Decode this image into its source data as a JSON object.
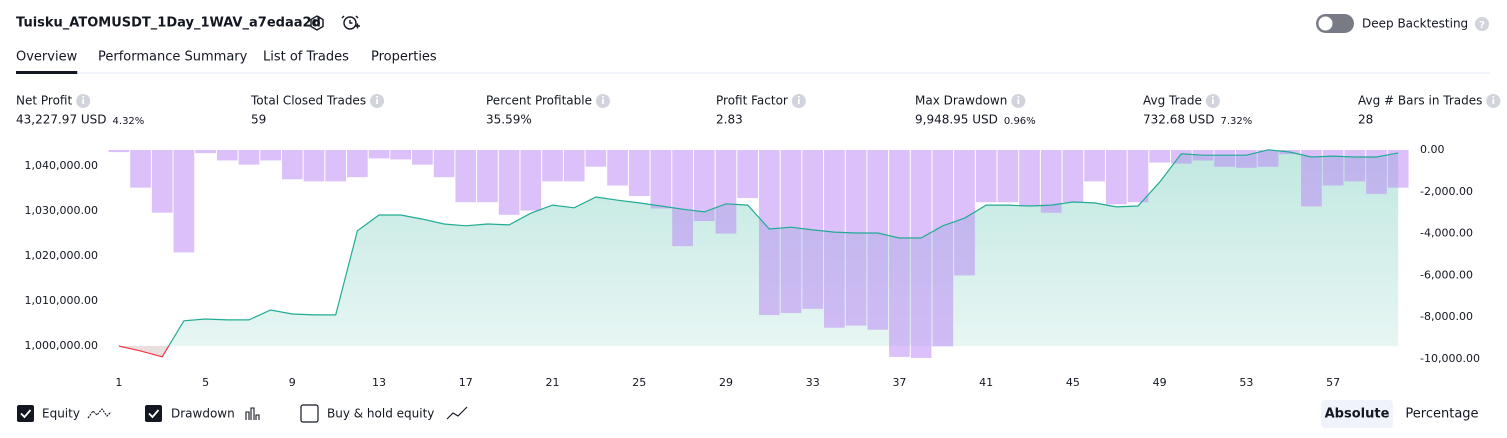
{
  "header": {
    "title": "Tuisku_ATOMUSDT_1Day_1WAV_a7edaa2d",
    "deep_backtesting": "Deep Backtesting"
  },
  "tabs": {
    "items": [
      "Overview",
      "Performance Summary",
      "List of Trades",
      "Properties"
    ],
    "active": 0
  },
  "metrics": [
    {
      "label": "Net Profit",
      "value": "43,227.97 USD",
      "percent": "4.32%",
      "color": "#089981"
    },
    {
      "label": "Total Closed Trades",
      "value": "59",
      "color": "#131722"
    },
    {
      "label": "Percent Profitable",
      "value": "35.59%",
      "color": "#089981"
    },
    {
      "label": "Profit Factor",
      "value": "2.83",
      "color": "#089981"
    },
    {
      "label": "Max Drawdown",
      "value": "9,948.95 USD",
      "percent": "0.96%",
      "color": "#f23645"
    },
    {
      "label": "Avg Trade",
      "value": "732.68 USD",
      "percent": "7.32%",
      "color": "#089981"
    },
    {
      "label": "Avg # Bars in Trades",
      "value": "28",
      "color": "#131722"
    }
  ],
  "chart_data": {
    "type": "equity_drawdown",
    "x": [
      1,
      2,
      3,
      4,
      5,
      6,
      7,
      8,
      9,
      10,
      11,
      12,
      13,
      14,
      15,
      16,
      17,
      18,
      19,
      20,
      21,
      22,
      23,
      24,
      25,
      26,
      27,
      28,
      29,
      30,
      31,
      32,
      33,
      34,
      35,
      36,
      37,
      38,
      39,
      40,
      41,
      42,
      43,
      44,
      45,
      46,
      47,
      48,
      49,
      50,
      51,
      52,
      53,
      54,
      55,
      56,
      57,
      58,
      59,
      60
    ],
    "xlim": [
      0.5,
      60.5
    ],
    "xticks": [
      1,
      5,
      9,
      13,
      17,
      21,
      25,
      29,
      33,
      37,
      41,
      45,
      49,
      53,
      57
    ],
    "series": [
      {
        "name": "Equity",
        "color": "#22ab94",
        "below_color": "#f23645",
        "checked": true,
        "axis": "y",
        "values": [
          1000000,
          998900,
          997600,
          1005600,
          1006000,
          1005800,
          1005800,
          1008000,
          1007100,
          1006900,
          1006900,
          1025600,
          1029100,
          1029100,
          1028200,
          1027100,
          1026700,
          1027100,
          1026900,
          1029500,
          1031300,
          1030700,
          1033100,
          1032400,
          1031800,
          1031100,
          1030400,
          1029800,
          1031600,
          1031300,
          1026000,
          1026400,
          1025800,
          1025300,
          1025100,
          1025100,
          1024000,
          1024000,
          1026700,
          1028400,
          1031300,
          1031300,
          1031100,
          1031300,
          1032000,
          1031800,
          1030900,
          1031100,
          1036400,
          1042700,
          1042400,
          1042400,
          1042400,
          1043600,
          1043100,
          1042000,
          1042200,
          1042000,
          1042000,
          1042900
        ]
      },
      {
        "name": "Drawdown",
        "color": "rgba(186,130,245,0.5)",
        "checked": true,
        "axis": "y2",
        "values": [
          -100,
          -1800,
          -3000,
          -4900,
          -150,
          -500,
          -700,
          -500,
          -1400,
          -1500,
          -1500,
          -1300,
          -400,
          -450,
          -700,
          -1300,
          -2500,
          -2500,
          -3100,
          -2900,
          -1500,
          -1500,
          -800,
          -1700,
          -2200,
          -2800,
          -4600,
          -3400,
          -4000,
          -2300,
          -7900,
          -7800,
          -7600,
          -8500,
          -8400,
          -8600,
          -9900,
          -9950,
          -9400,
          -6000,
          -2500,
          -2500,
          -2700,
          -3000,
          -2500,
          -1500,
          -2600,
          -2500,
          -600,
          -650,
          -500,
          -800,
          -850,
          -800,
          -200,
          -2700,
          -1700,
          -1500,
          -2100,
          -1800
        ]
      }
    ],
    "baseline": 1000000,
    "ylim": [
      997100,
      1043550
    ],
    "yticks": [
      {
        "value": 1000000,
        "label": "1,000,000.00"
      },
      {
        "value": 1010000,
        "label": "1,010,000.00"
      },
      {
        "value": 1020000,
        "label": "1,020,000.00"
      },
      {
        "value": 1030000,
        "label": "1,030,000.00"
      },
      {
        "value": 1040000,
        "label": "1,040,000.00"
      }
    ],
    "y2lim": [
      -10000,
      0
    ],
    "y2ticks": [
      {
        "value": 0,
        "label": "0.00"
      },
      {
        "value": -2000,
        "label": "-2,000.00"
      },
      {
        "value": -4000,
        "label": "-4,000.00"
      },
      {
        "value": -6000,
        "label": "-6,000.00"
      },
      {
        "value": -8000,
        "label": "-8,000.00"
      },
      {
        "value": -10000,
        "label": "-10,000.00"
      }
    ]
  },
  "legend": {
    "buy_hold": {
      "label": "Buy & hold equity",
      "checked": false
    }
  },
  "scale_modes": {
    "items": [
      "Absolute",
      "Percentage"
    ],
    "active": 0
  }
}
